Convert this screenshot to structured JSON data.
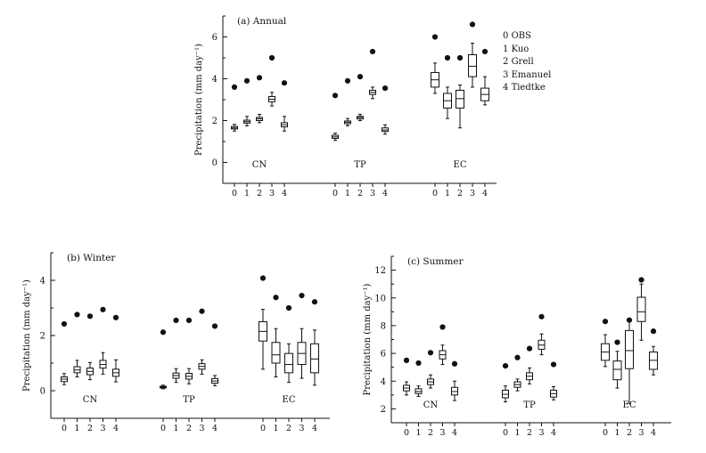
{
  "figure": {
    "legend": [
      {
        "code": "0",
        "label": "OBS"
      },
      {
        "code": "1",
        "label": "Kuo"
      },
      {
        "code": "2",
        "label": "Grell"
      },
      {
        "code": "3",
        "label": "Emanuel"
      },
      {
        "code": "4",
        "label": "Tiedtke"
      }
    ],
    "colors": {
      "ink": "#111111",
      "background": "#ffffff"
    }
  },
  "chart_data": [
    {
      "id": "annual",
      "type": "boxplot",
      "title": "(a) Annual",
      "ylabel": "Precipitation (mm day⁻¹)",
      "ylim": [
        -1,
        7
      ],
      "yticks": [
        0,
        2,
        4,
        6
      ],
      "groups": [
        "CN",
        "TP",
        "EC"
      ],
      "categories": [
        "0",
        "1",
        "2",
        "3",
        "4"
      ],
      "series": [
        {
          "group": "CN",
          "boxes": [
            {
              "model": "0",
              "min": 1.5,
              "q1": 1.6,
              "median": 1.65,
              "q3": 1.72,
              "max": 1.82,
              "extreme": 3.6
            },
            {
              "model": "1",
              "min": 1.75,
              "q1": 1.88,
              "median": 1.95,
              "q3": 2.02,
              "max": 2.2,
              "extreme": 3.9
            },
            {
              "model": "2",
              "min": 1.9,
              "q1": 2.0,
              "median": 2.08,
              "q3": 2.15,
              "max": 2.3,
              "extreme": 4.05
            },
            {
              "model": "3",
              "min": 2.7,
              "q1": 2.9,
              "median": 3.02,
              "q3": 3.15,
              "max": 3.35,
              "extreme": 5.0
            },
            {
              "model": "4",
              "min": 1.5,
              "q1": 1.7,
              "median": 1.8,
              "q3": 1.9,
              "max": 2.2,
              "extreme": 3.8
            }
          ]
        },
        {
          "group": "TP",
          "boxes": [
            {
              "model": "0",
              "min": 1.05,
              "q1": 1.15,
              "median": 1.22,
              "q3": 1.3,
              "max": 1.4,
              "extreme": 3.2
            },
            {
              "model": "1",
              "min": 1.75,
              "q1": 1.85,
              "median": 1.92,
              "q3": 1.98,
              "max": 2.1,
              "extreme": 3.9
            },
            {
              "model": "2",
              "min": 2.0,
              "q1": 2.08,
              "median": 2.15,
              "q3": 2.2,
              "max": 2.3,
              "extreme": 4.1
            },
            {
              "model": "3",
              "min": 3.05,
              "q1": 3.25,
              "median": 3.35,
              "q3": 3.45,
              "max": 3.6,
              "extreme": 5.3
            },
            {
              "model": "4",
              "min": 1.35,
              "q1": 1.48,
              "median": 1.55,
              "q3": 1.65,
              "max": 1.8,
              "extreme": 3.55
            }
          ]
        },
        {
          "group": "EC",
          "boxes": [
            {
              "model": "0",
              "min": 3.3,
              "q1": 3.6,
              "median": 3.95,
              "q3": 4.3,
              "max": 4.75,
              "extreme": 6.0
            },
            {
              "model": "1",
              "min": 2.1,
              "q1": 2.6,
              "median": 2.95,
              "q3": 3.3,
              "max": 3.6,
              "extreme": 5.0
            },
            {
              "model": "2",
              "min": 1.65,
              "q1": 2.6,
              "median": 3.05,
              "q3": 3.45,
              "max": 3.7,
              "extreme": 5.0
            },
            {
              "model": "3",
              "min": 3.6,
              "q1": 4.1,
              "median": 4.6,
              "q3": 5.15,
              "max": 5.7,
              "extreme": 6.6
            },
            {
              "model": "4",
              "min": 2.75,
              "q1": 2.95,
              "median": 3.25,
              "q3": 3.55,
              "max": 4.1,
              "extreme": 5.3
            }
          ]
        }
      ]
    },
    {
      "id": "winter",
      "type": "boxplot",
      "title": "(b) Winter",
      "ylabel": "Precipitation (mm day⁻¹)",
      "ylim": [
        -1,
        5
      ],
      "yticks": [
        0,
        2,
        4
      ],
      "groups": [
        "CN",
        "TP",
        "EC"
      ],
      "categories": [
        "0",
        "1",
        "2",
        "3",
        "4"
      ],
      "series": [
        {
          "group": "CN",
          "boxes": [
            {
              "model": "0",
              "min": 0.22,
              "q1": 0.33,
              "median": 0.42,
              "q3": 0.5,
              "max": 0.62,
              "extreme": 2.42
            },
            {
              "model": "1",
              "min": 0.5,
              "q1": 0.65,
              "median": 0.75,
              "q3": 0.87,
              "max": 1.1,
              "extreme": 2.76
            },
            {
              "model": "2",
              "min": 0.4,
              "q1": 0.58,
              "median": 0.7,
              "q3": 0.82,
              "max": 1.02,
              "extreme": 2.7
            },
            {
              "model": "3",
              "min": 0.6,
              "q1": 0.82,
              "median": 0.95,
              "q3": 1.1,
              "max": 1.38,
              "extreme": 2.94
            },
            {
              "model": "4",
              "min": 0.32,
              "q1": 0.52,
              "median": 0.65,
              "q3": 0.78,
              "max": 1.12,
              "extreme": 2.65
            }
          ]
        },
        {
          "group": "TP",
          "boxes": [
            {
              "model": "0",
              "min": 0.07,
              "q1": 0.1,
              "median": 0.13,
              "q3": 0.16,
              "max": 0.2,
              "extreme": 2.12
            },
            {
              "model": "1",
              "min": 0.3,
              "q1": 0.45,
              "median": 0.55,
              "q3": 0.64,
              "max": 0.8,
              "extreme": 2.55
            },
            {
              "model": "2",
              "min": 0.25,
              "q1": 0.42,
              "median": 0.52,
              "q3": 0.63,
              "max": 0.8,
              "extreme": 2.55
            },
            {
              "model": "3",
              "min": 0.6,
              "q1": 0.78,
              "median": 0.88,
              "q3": 0.98,
              "max": 1.12,
              "extreme": 2.88
            },
            {
              "model": "4",
              "min": 0.18,
              "q1": 0.27,
              "median": 0.35,
              "q3": 0.44,
              "max": 0.55,
              "extreme": 2.34
            }
          ]
        },
        {
          "group": "EC",
          "boxes": [
            {
              "model": "0",
              "min": 0.78,
              "q1": 1.8,
              "median": 2.15,
              "q3": 2.5,
              "max": 2.95,
              "extreme": 4.08
            },
            {
              "model": "1",
              "min": 0.5,
              "q1": 1.0,
              "median": 1.3,
              "q3": 1.75,
              "max": 2.25,
              "extreme": 3.38
            },
            {
              "model": "2",
              "min": 0.3,
              "q1": 0.65,
              "median": 0.95,
              "q3": 1.35,
              "max": 1.7,
              "extreme": 3.0
            },
            {
              "model": "3",
              "min": 0.45,
              "q1": 0.95,
              "median": 1.35,
              "q3": 1.75,
              "max": 2.25,
              "extreme": 3.45
            },
            {
              "model": "4",
              "min": 0.2,
              "q1": 0.65,
              "median": 1.15,
              "q3": 1.7,
              "max": 2.2,
              "extreme": 3.22
            }
          ]
        }
      ]
    },
    {
      "id": "summer",
      "type": "boxplot",
      "title": "(c) Summer",
      "ylabel": "Precipitation (mm day⁻¹)",
      "ylim": [
        1,
        13
      ],
      "yticks": [
        2,
        4,
        6,
        8,
        10,
        12
      ],
      "groups": [
        "CN",
        "TP",
        "EC"
      ],
      "categories": [
        "0",
        "1",
        "2",
        "3",
        "4"
      ],
      "series": [
        {
          "group": "CN",
          "boxes": [
            {
              "model": "0",
              "min": 3.0,
              "q1": 3.3,
              "median": 3.5,
              "q3": 3.7,
              "max": 3.95,
              "extreme": 5.5
            },
            {
              "model": "1",
              "min": 2.9,
              "q1": 3.1,
              "median": 3.25,
              "q3": 3.45,
              "max": 3.65,
              "extreme": 5.3
            },
            {
              "model": "2",
              "min": 3.5,
              "q1": 3.75,
              "median": 3.95,
              "q3": 4.15,
              "max": 4.45,
              "extreme": 6.05
            },
            {
              "model": "3",
              "min": 5.2,
              "q1": 5.6,
              "median": 5.9,
              "q3": 6.2,
              "max": 6.6,
              "extreme": 7.9
            },
            {
              "model": "4",
              "min": 2.6,
              "q1": 3.0,
              "median": 3.25,
              "q3": 3.55,
              "max": 4.0,
              "extreme": 5.25
            }
          ]
        },
        {
          "group": "TP",
          "boxes": [
            {
              "model": "0",
              "min": 2.5,
              "q1": 2.8,
              "median": 3.05,
              "q3": 3.35,
              "max": 3.65,
              "extreme": 5.1
            },
            {
              "model": "1",
              "min": 3.3,
              "q1": 3.55,
              "median": 3.75,
              "q3": 3.95,
              "max": 4.15,
              "extreme": 5.7
            },
            {
              "model": "2",
              "min": 3.8,
              "q1": 4.1,
              "median": 4.35,
              "q3": 4.6,
              "max": 4.95,
              "extreme": 6.35
            },
            {
              "model": "3",
              "min": 5.9,
              "q1": 6.3,
              "median": 6.6,
              "q3": 6.95,
              "max": 7.4,
              "extreme": 8.65
            },
            {
              "model": "4",
              "min": 2.65,
              "q1": 2.85,
              "median": 3.1,
              "q3": 3.35,
              "max": 3.6,
              "extreme": 5.2
            }
          ]
        },
        {
          "group": "EC",
          "boxes": [
            {
              "model": "0",
              "min": 5.05,
              "q1": 5.5,
              "median": 6.1,
              "q3": 6.7,
              "max": 7.35,
              "extreme": 8.3
            },
            {
              "model": "1",
              "min": 3.5,
              "q1": 4.1,
              "median": 4.85,
              "q3": 5.45,
              "max": 6.15,
              "extreme": 6.8
            },
            {
              "model": "2",
              "min": 2.4,
              "q1": 4.9,
              "median": 6.2,
              "q3": 7.65,
              "max": 8.4,
              "extreme": 8.4
            },
            {
              "model": "3",
              "min": 6.95,
              "q1": 8.3,
              "median": 9.0,
              "q3": 10.05,
              "max": 11.0,
              "extreme": 11.3
            },
            {
              "model": "4",
              "min": 4.45,
              "q1": 4.85,
              "median": 5.5,
              "q3": 6.1,
              "max": 6.5,
              "extreme": 7.6
            }
          ]
        }
      ]
    }
  ]
}
